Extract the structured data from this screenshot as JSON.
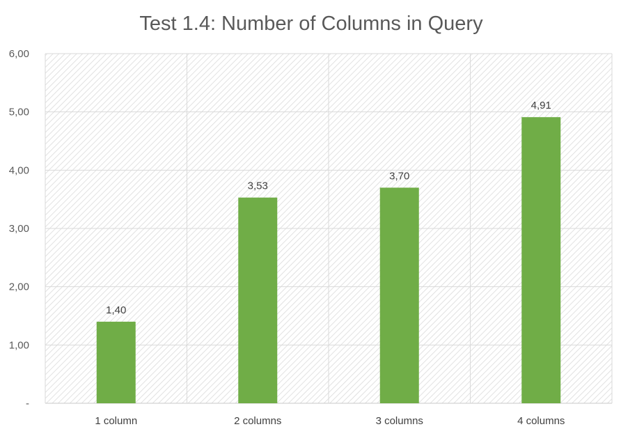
{
  "chart_data": {
    "type": "bar",
    "title": "Test 1.4: Number of Columns in Query",
    "categories": [
      "1 column",
      "2 columns",
      "3 columns",
      "4 columns"
    ],
    "values": [
      1.4,
      3.53,
      3.7,
      4.91
    ],
    "data_labels": [
      "1,40",
      "3,53",
      "3,70",
      "4,91"
    ],
    "y_ticks": [
      0,
      1,
      2,
      3,
      4,
      5,
      6
    ],
    "y_tick_labels": [
      "-",
      "1,00",
      "2,00",
      "3,00",
      "4,00",
      "5,00",
      "6,00"
    ],
    "ylim": [
      0,
      6
    ],
    "xlabel": "",
    "ylabel": "",
    "grid": true,
    "legend": "none",
    "bar_color": "#70ad47",
    "plot_background": "hatched"
  }
}
